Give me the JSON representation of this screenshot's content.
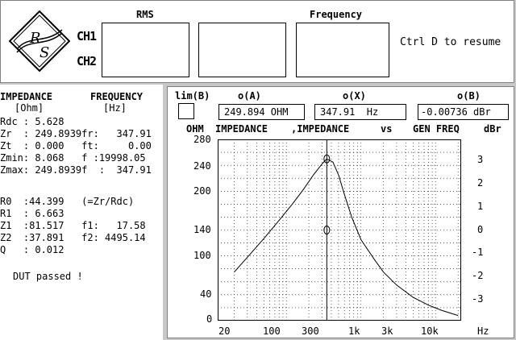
{
  "header": {
    "ch1": "CH1",
    "ch2": "CH2",
    "rms_label": "RMS",
    "frequency_label": "Frequency",
    "resume_hint": "Ctrl D to resume"
  },
  "results": {
    "impedance_head": "IMPEDANCE",
    "frequency_head": "FREQUENCY",
    "ohm_unit": "[Ohm]",
    "hz_unit": "[Hz]",
    "lines": [
      "Rdc : 5.628",
      "Zr  : 249.8939fr:   347.91",
      "Zt  : 0.000   ft:     0.00",
      "Zmin: 8.068   f :19998.05",
      "Zmax: 249.8939f  :  347.91"
    ],
    "lines2": [
      "R0  :44.399   (=Zr/Rdc)",
      "R1  : 6.663",
      "Z1  :81.517   f1:   17.58",
      "Z2  :37.891   f2: 4495.14",
      "Q   : 0.012"
    ],
    "status": "DUT passed !"
  },
  "graph": {
    "lim_label": "lim(B)",
    "oA_label": "o(A)",
    "oX_label": "o(X)",
    "oB_label": "o(B)",
    "oA_value": "249.894 OHM",
    "oX_value": "347.91  Hz",
    "oB_value": "-0.00736 dBr",
    "left_unit": "OHM",
    "title_a": "IMPEDANCE",
    "title_b": ",IMPEDANCE",
    "title_vs": "vs",
    "title_c": "GEN FREQ",
    "right_unit": "dBr",
    "x_unit": "Hz"
  },
  "chart_data": {
    "type": "line",
    "title": "IMPEDANCE ,IMPEDANCE vs GEN FREQ",
    "xlabel": "Hz",
    "ylabel": "OHM",
    "y2label": "dBr",
    "x_scale": "log",
    "grid": true,
    "x_ticks": [
      "20",
      "100",
      "300",
      "1k",
      "3k",
      "10k"
    ],
    "y_ticks": [
      "280",
      "240",
      "200",
      "140",
      "100",
      "40",
      "0"
    ],
    "y2_ticks": [
      "3",
      "2",
      "1",
      "0",
      "-1",
      "-2",
      "-3"
    ],
    "cursor_frequency": 347.91,
    "series": [
      {
        "values": [
          {
            "x": 20,
            "y": 75
          },
          {
            "x": 30,
            "y": 98
          },
          {
            "x": 50,
            "y": 127
          },
          {
            "x": 80,
            "y": 155
          },
          {
            "x": 120,
            "y": 180
          },
          {
            "x": 170,
            "y": 203
          },
          {
            "x": 230,
            "y": 225
          },
          {
            "x": 300,
            "y": 242
          },
          {
            "x": 347.91,
            "y": 249.9
          },
          {
            "x": 420,
            "y": 245
          },
          {
            "x": 500,
            "y": 225
          },
          {
            "x": 600,
            "y": 195
          },
          {
            "x": 750,
            "y": 160
          },
          {
            "x": 1000,
            "y": 125
          },
          {
            "x": 1500,
            "y": 95
          },
          {
            "x": 2000,
            "y": 75
          },
          {
            "x": 3000,
            "y": 55
          },
          {
            "x": 5000,
            "y": 36
          },
          {
            "x": 8000,
            "y": 24
          },
          {
            "x": 12000,
            "y": 16
          },
          {
            "x": 20000,
            "y": 8
          }
        ]
      }
    ],
    "markers": [
      {
        "x": 347.91,
        "y": 249.9
      },
      {
        "x": 347.91,
        "y": 140
      }
    ]
  }
}
